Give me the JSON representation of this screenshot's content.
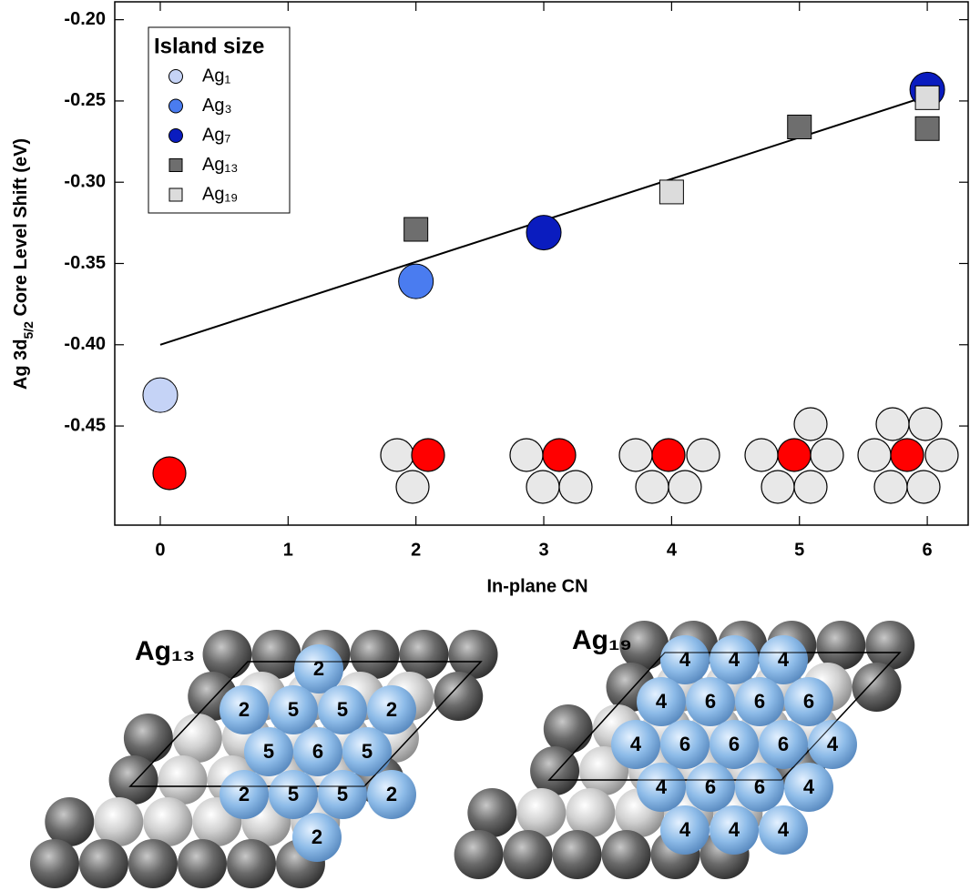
{
  "chart_data": {
    "type": "scatter",
    "xlabel": "In-plane CN",
    "ylabel": {
      "text": "Ag 3d",
      "sub": "5/2",
      "rest": " Core Level Shift (eV)"
    },
    "xlim": [
      -0.356,
      6.32
    ],
    "ylim": [
      -0.511,
      -0.189
    ],
    "xticks": [
      0,
      1,
      2,
      3,
      4,
      5,
      6
    ],
    "yticks": [
      {
        "value": -0.2,
        "label": "-0.20"
      },
      -0.25,
      {
        "value": -0.3,
        "label": "-0.30"
      },
      -0.35,
      {
        "value": -0.4,
        "label": "-0.40"
      },
      -0.45
    ],
    "legend": {
      "title": "Island size",
      "position": "upper left"
    },
    "series": [
      {
        "name": "Ag₁",
        "color": "#c5d3f6",
        "marker": "circle",
        "x": [
          0
        ],
        "values": [
          -0.431
        ]
      },
      {
        "name": "Ag₃",
        "color": "#4a7cf0",
        "marker": "circle",
        "x": [
          2
        ],
        "values": [
          -0.361
        ]
      },
      {
        "name": "Ag₇",
        "color": "#0a1cbf",
        "marker": "circle",
        "x": [
          3,
          6
        ],
        "values": [
          -0.331,
          -0.243
        ]
      },
      {
        "name": "Ag₁₃",
        "color": "#6e6e6e",
        "marker": "square",
        "x": [
          2,
          5,
          6
        ],
        "values": [
          -0.329,
          -0.266,
          -0.267
        ]
      },
      {
        "name": "Ag₁₉",
        "color": "#dcdcdc",
        "marker": "square",
        "x": [
          4,
          6
        ],
        "values": [
          -0.306,
          -0.248
        ]
      }
    ],
    "fit": {
      "color": "#000000",
      "x": [
        0,
        6
      ],
      "values": [
        -0.4,
        -0.247
      ]
    }
  },
  "structures": [
    {
      "label": "Ag₁₃",
      "rows": [
        [
          "2"
        ],
        [
          "2",
          "5",
          "5",
          "2"
        ],
        [
          "5",
          "6",
          "5"
        ],
        [
          "2",
          "5",
          "5",
          "2"
        ],
        [
          "2"
        ]
      ]
    },
    {
      "label": "Ag₁₉",
      "rows": [
        [
          "4",
          "4",
          "4"
        ],
        [
          "4",
          "6",
          "6",
          "6"
        ],
        [
          "4",
          "6",
          "6",
          "6",
          "4"
        ],
        [
          "4",
          "6",
          "6",
          "4"
        ],
        [
          "4",
          "4",
          "4"
        ]
      ]
    }
  ]
}
